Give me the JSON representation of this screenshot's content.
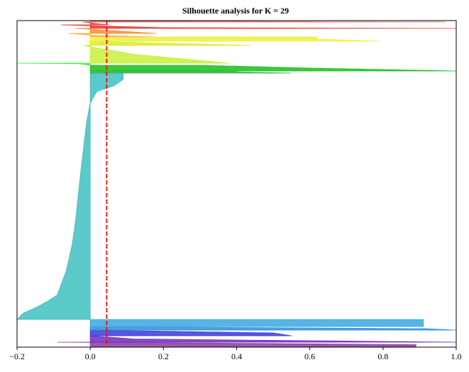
{
  "chart_data": {
    "type": "silhouette",
    "title": "Silhouette analysis for K = 29",
    "xlabel": "",
    "ylabel": "",
    "xlim": [
      -0.2,
      1.0
    ],
    "x_ticks": [
      -0.2,
      0.0,
      0.2,
      0.4,
      0.6,
      0.8,
      1.0
    ],
    "x_tick_labels": [
      "−0.2",
      "0.0",
      "0.2",
      "0.4",
      "0.6",
      "0.8",
      "1.0"
    ],
    "average_silhouette": 0.045,
    "average_line_color": "#ff0000",
    "grid": false,
    "clusters_bottom_to_top": [
      {
        "color": "#8e3a9e",
        "profile": [
          [
            0,
            0.89
          ],
          [
            0.5,
            0.89
          ],
          [
            0.85,
            0.27
          ],
          [
            1,
            -0.09
          ]
        ]
      },
      {
        "color": "#6a2bc4",
        "profile": [
          [
            0,
            1.0
          ],
          [
            0.5,
            0.12
          ],
          [
            1,
            0.0
          ]
        ]
      },
      {
        "color": "#3c37d8",
        "profile": [
          [
            0,
            0.55
          ],
          [
            0.5,
            0.5
          ],
          [
            1,
            0.0
          ]
        ]
      },
      {
        "color": "#2a8fdc",
        "profile": [
          [
            0,
            1.0
          ],
          [
            0.4,
            0.92
          ],
          [
            1,
            0.0
          ]
        ]
      },
      {
        "color": "#3aa8e0",
        "profile": [
          [
            0,
            0.91
          ],
          [
            1,
            0.91
          ]
        ]
      },
      {
        "color": "#40bfc1",
        "profile": [
          [
            0,
            -0.2
          ],
          [
            0.03,
            -0.18
          ],
          [
            0.06,
            -0.13
          ],
          [
            0.1,
            -0.09
          ],
          [
            0.2,
            -0.065
          ],
          [
            0.3,
            -0.05
          ],
          [
            0.4,
            -0.04
          ],
          [
            0.5,
            -0.033
          ],
          [
            0.6,
            -0.026
          ],
          [
            0.7,
            -0.018
          ],
          [
            0.8,
            -0.01
          ],
          [
            0.88,
            0.0
          ],
          [
            0.93,
            0.02
          ],
          [
            0.96,
            0.09
          ],
          [
            1,
            0.09
          ]
        ]
      },
      {
        "color": "#2fb04a",
        "profile": [
          [
            0,
            0.55
          ],
          [
            0.5,
            0.41
          ],
          [
            1,
            0.38
          ]
        ]
      },
      {
        "color": "#19c019",
        "profile": [
          [
            0,
            1.0
          ],
          [
            0.5,
            0.61
          ],
          [
            1,
            0.3
          ]
        ]
      },
      {
        "color": "#3df23d",
        "profile": [
          [
            0,
            0.0
          ],
          [
            0.45,
            -0.02
          ],
          [
            0.75,
            -0.03
          ],
          [
            1,
            -0.2
          ]
        ]
      },
      {
        "color": "#c6f03a",
        "profile": [
          [
            0,
            0.38
          ],
          [
            0.5,
            0.12
          ],
          [
            1,
            -0.02
          ]
        ]
      },
      {
        "color": "#d9ec2a",
        "profile": [
          [
            0,
            0.44
          ],
          [
            1,
            -0.01
          ]
        ]
      },
      {
        "color": "#f0f03a",
        "profile": [
          [
            0,
            0.79
          ],
          [
            0.5,
            0.62
          ],
          [
            1,
            0.62
          ]
        ]
      },
      {
        "color": "#ffb13d",
        "profile": [
          [
            0,
            0.17
          ],
          [
            0.5,
            0.0
          ],
          [
            1,
            -0.06
          ]
        ]
      },
      {
        "color": "#ff8a2a",
        "profile": [
          [
            0,
            0.18
          ],
          [
            1,
            -0.04
          ]
        ]
      },
      {
        "color": "#e8322a",
        "profile": [
          [
            0,
            1.0
          ],
          [
            0.2,
            0.2
          ],
          [
            1,
            -0.08
          ]
        ]
      },
      {
        "color": "#e23a3a",
        "profile": [
          [
            0,
            0.05
          ],
          [
            1,
            -0.02
          ]
        ]
      },
      {
        "color": "#e06060",
        "profile": [
          [
            0,
            0.97
          ],
          [
            0.5,
            0.27
          ],
          [
            1,
            0.27
          ]
        ]
      }
    ]
  }
}
